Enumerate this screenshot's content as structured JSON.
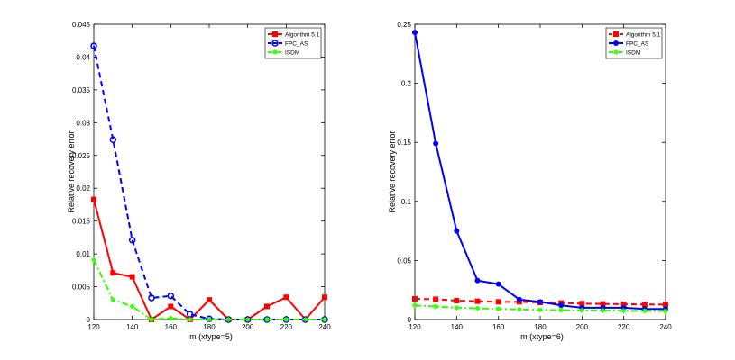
{
  "chart_data": [
    {
      "type": "line",
      "xlabel": "m     (xtype=5)",
      "ylabel": "Relative recovery error",
      "xlim": [
        120,
        240
      ],
      "ylim": [
        0,
        0.045
      ],
      "xticks": [
        "120",
        "140",
        "160",
        "180",
        "200",
        "220",
        "240"
      ],
      "yticks": [
        "0",
        "0.005",
        "0.01",
        "0.015",
        "0.02",
        "0.025",
        "0.03",
        "0.035",
        "0.04",
        "0.045"
      ],
      "legend_position": "top-right",
      "x": [
        120,
        130,
        140,
        150,
        160,
        170,
        180,
        190,
        200,
        210,
        220,
        230,
        240
      ],
      "series": [
        {
          "name": "Algorithm 5.1",
          "color": "#ff0000",
          "dash": "solid",
          "marker": "square-filled",
          "values": [
            0.0183,
            0.0071,
            0.0065,
            0.0,
            0.002,
            0.0,
            0.003,
            0.0,
            0.0,
            0.002,
            0.0034,
            0.0,
            0.0034
          ]
        },
        {
          "name": "FPC_AS",
          "color": "#0000ff",
          "dash": "dashed",
          "marker": "circle-open",
          "values": [
            0.0417,
            0.0274,
            0.0121,
            0.0033,
            0.0036,
            0.0008,
            0.0001,
            0.0,
            0.0,
            0.0,
            0.0,
            0.0,
            0.0
          ]
        },
        {
          "name": "ISDM",
          "color": "#33ff00",
          "dash": "dashdot",
          "marker": "star",
          "values": [
            0.0091,
            0.003,
            0.002,
            0.0,
            0.0002,
            0.0,
            0.0,
            0.0,
            0.0,
            0.0,
            0.0,
            0.0,
            0.0
          ]
        }
      ]
    },
    {
      "type": "line",
      "xlabel": "m     (xtype=6)",
      "ylabel": "Relative recovery error",
      "xlim": [
        120,
        240
      ],
      "ylim": [
        0,
        0.25
      ],
      "xticks": [
        "120",
        "140",
        "160",
        "180",
        "200",
        "220",
        "240"
      ],
      "yticks": [
        "0",
        "0.05",
        "0.1",
        "0.15",
        "0.2",
        "0.25"
      ],
      "legend_position": "top-right",
      "x": [
        120,
        130,
        140,
        150,
        160,
        170,
        180,
        190,
        200,
        210,
        220,
        230,
        240
      ],
      "series": [
        {
          "name": "Algorithm 5.1",
          "color": "#ff0000",
          "dash": "dashed",
          "marker": "square-filled",
          "values": [
            0.0175,
            0.0172,
            0.016,
            0.0155,
            0.015,
            0.015,
            0.0145,
            0.014,
            0.0135,
            0.0132,
            0.013,
            0.0128,
            0.0127
          ]
        },
        {
          "name": "FPC_AS",
          "color": "#0000ff",
          "dash": "solid",
          "marker": "circle-filled",
          "values": [
            0.243,
            0.149,
            0.075,
            0.033,
            0.03,
            0.017,
            0.015,
            0.012,
            0.01,
            0.01,
            0.01,
            0.009,
            0.009
          ]
        },
        {
          "name": "ISDM",
          "color": "#33ff00",
          "dash": "dashdot",
          "marker": "star",
          "values": [
            0.012,
            0.011,
            0.01,
            0.0095,
            0.009,
            0.0085,
            0.0082,
            0.008,
            0.0078,
            0.0076,
            0.0074,
            0.0073,
            0.0072
          ]
        }
      ]
    }
  ]
}
